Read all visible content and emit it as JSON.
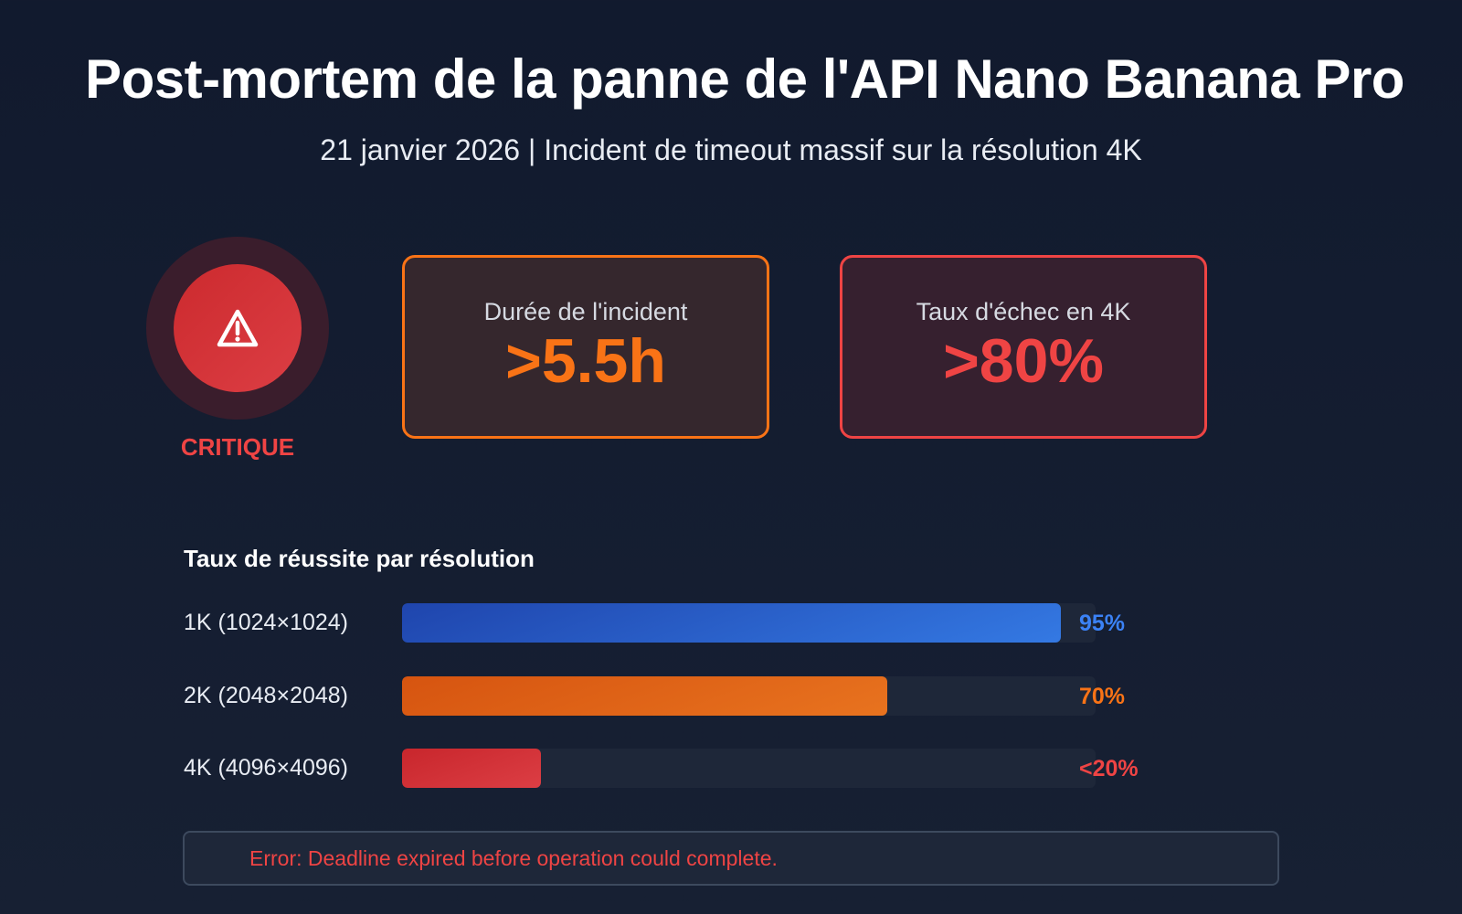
{
  "header": {
    "title": "Post-mortem de la panne de l'API Nano Banana Pro",
    "subtitle": "21 janvier 2026 | Incident de timeout massif sur la résolution 4K"
  },
  "severity": {
    "icon": "warning-triangle-icon",
    "label": "CRITIQUE",
    "color": "#ef4444"
  },
  "cards": [
    {
      "label": "Durée de l'incident",
      "value": ">5.5h",
      "color": "#f97316"
    },
    {
      "label": "Taux d'échec en 4K",
      "value": ">80%",
      "color": "#ef4444"
    }
  ],
  "chart_data": {
    "type": "bar",
    "title": "Taux de réussite par résolution",
    "categories": [
      "1K (1024×1024)",
      "2K (2048×2048)",
      "4K (4096×4096)"
    ],
    "values": [
      95,
      70,
      20
    ],
    "value_labels": [
      "95%",
      "70%",
      "<20%"
    ],
    "colors": [
      "#3b82f6",
      "#f97316",
      "#ef4444"
    ],
    "ylim": [
      0,
      100
    ]
  },
  "error": {
    "message": "Error: Deadline expired before operation could complete."
  }
}
